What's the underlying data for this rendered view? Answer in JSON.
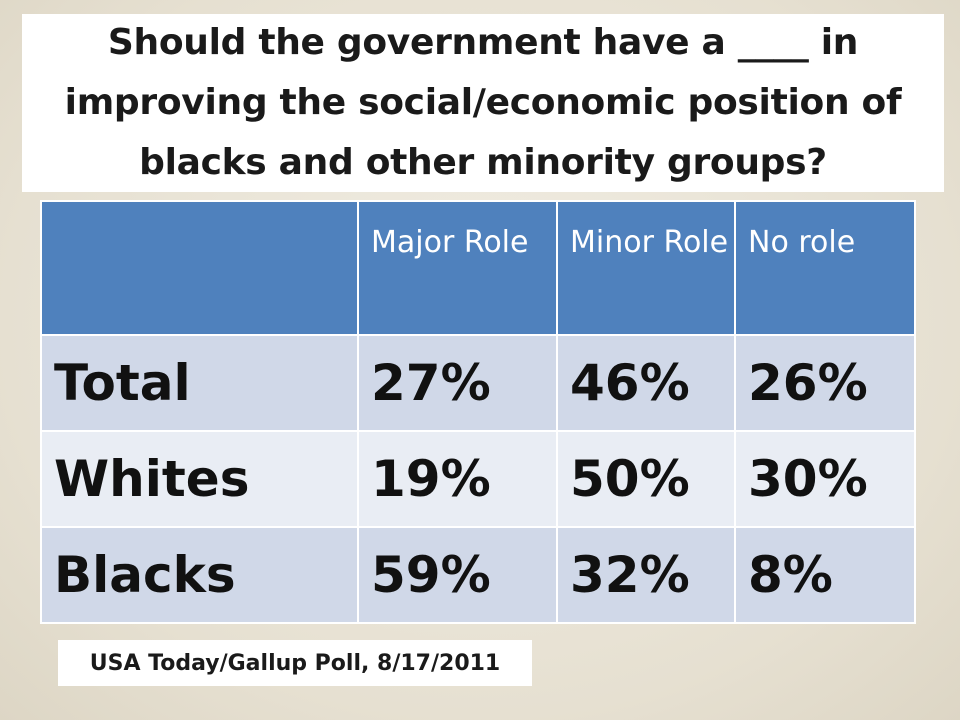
{
  "title": "Should the government have a ____ in improving the social/economic position of blacks and other minority groups?",
  "table": {
    "header": [
      "",
      "Major Role",
      "Minor Role",
      "No role"
    ],
    "rows": [
      {
        "label": "Total",
        "values": [
          "27%",
          "46%",
          "26%"
        ]
      },
      {
        "label": "Whites",
        "values": [
          "19%",
          "50%",
          "30%"
        ]
      },
      {
        "label": "Blacks",
        "values": [
          "59%",
          "32%",
          "8%"
        ]
      }
    ]
  },
  "source": "USA Today/Gallup Poll, 8/17/2011",
  "colors": {
    "header_bg": "#4f81bd",
    "row_odd": "#d0d8e8",
    "row_even": "#e9edf4",
    "slide_bg": "#e8e3d6"
  }
}
